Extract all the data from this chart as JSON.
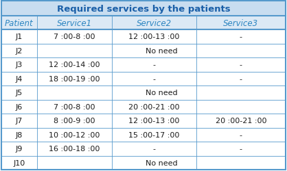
{
  "title": "Required services by the patients",
  "title_color": "#1a5fa8",
  "header_bg": "#dce9f5",
  "title_bg": "#c8ddf0",
  "col_headers": [
    "Patient",
    "Service1",
    "Service2",
    "Service3"
  ],
  "col_header_color": "#2e86c1",
  "rows": [
    [
      "J1",
      "7 :00-8 :00",
      "12 :00-13 :00",
      "-"
    ],
    [
      "J2",
      "",
      "No need",
      ""
    ],
    [
      "J3",
      "12 :00-14 :00",
      "-",
      "-"
    ],
    [
      "J4",
      "18 :00-19 :00",
      "-",
      "-"
    ],
    [
      "J5",
      "",
      "No need",
      ""
    ],
    [
      "J6",
      "7 :00-8 :00",
      "20 :00-21 :00",
      ""
    ],
    [
      "J7",
      "8 :00-9 :00",
      "12 :00-13 :00",
      "20 :00-21 :00"
    ],
    [
      "J8",
      "10 :00-12 :00",
      "15 :00-17 :00",
      "-"
    ],
    [
      "J9",
      "16 :00-18 :00",
      "-",
      "-"
    ],
    [
      "J10",
      "",
      "No need",
      ""
    ]
  ],
  "no_need_rows": [
    1,
    4,
    9
  ],
  "text_color": "#1a1a1a",
  "border_color": "#5599cc",
  "figsize": [
    4.18,
    2.51
  ],
  "dpi": 100,
  "title_fontsize": 9.5,
  "header_fontsize": 8.5,
  "cell_fontsize": 8.0
}
